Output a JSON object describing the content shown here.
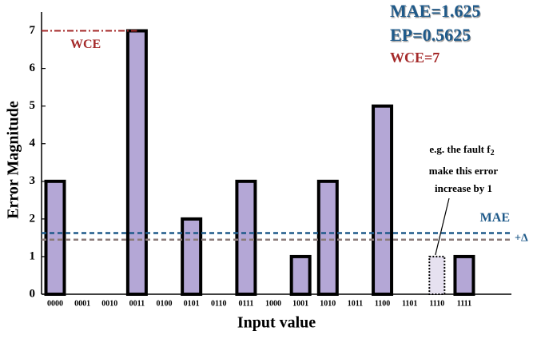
{
  "chart_data": {
    "type": "bar",
    "xlabel": "Input value",
    "ylabel": "Error Magnitude",
    "categories": [
      "0000",
      "0001",
      "0010",
      "0011",
      "0100",
      "0101",
      "0110",
      "0111",
      "1000",
      "1001",
      "1010",
      "1011",
      "1100",
      "1101",
      "1110",
      "1111"
    ],
    "values": [
      3,
      0,
      0,
      7,
      0,
      2,
      0,
      3,
      0,
      1,
      3,
      0,
      5,
      0,
      0,
      1
    ],
    "fault_values": [
      null,
      null,
      null,
      null,
      null,
      null,
      null,
      null,
      null,
      null,
      null,
      null,
      null,
      null,
      1,
      null
    ],
    "color": "#b4a7d6",
    "ylim": [
      0,
      7.5
    ],
    "yticks": [
      0,
      1,
      2,
      3,
      4,
      5,
      6,
      7
    ],
    "mae_line": 1.625,
    "mae_label": "MAE",
    "mae_color": "#1f5a8a",
    "shifted_line": 1.45,
    "shifted_color": "#8a7a78",
    "delta_label": "+Δ",
    "wce_line": 7,
    "wce_label": "WCE",
    "wce_color": "#a52a2a",
    "metrics": [
      "MAE=1.625",
      "EP=0.5625",
      "WCE=7"
    ],
    "annotation": {
      "line1": "e.g. the fault f",
      "subscript": "2",
      "line2": "make this error",
      "line3": "increase by 1"
    }
  }
}
